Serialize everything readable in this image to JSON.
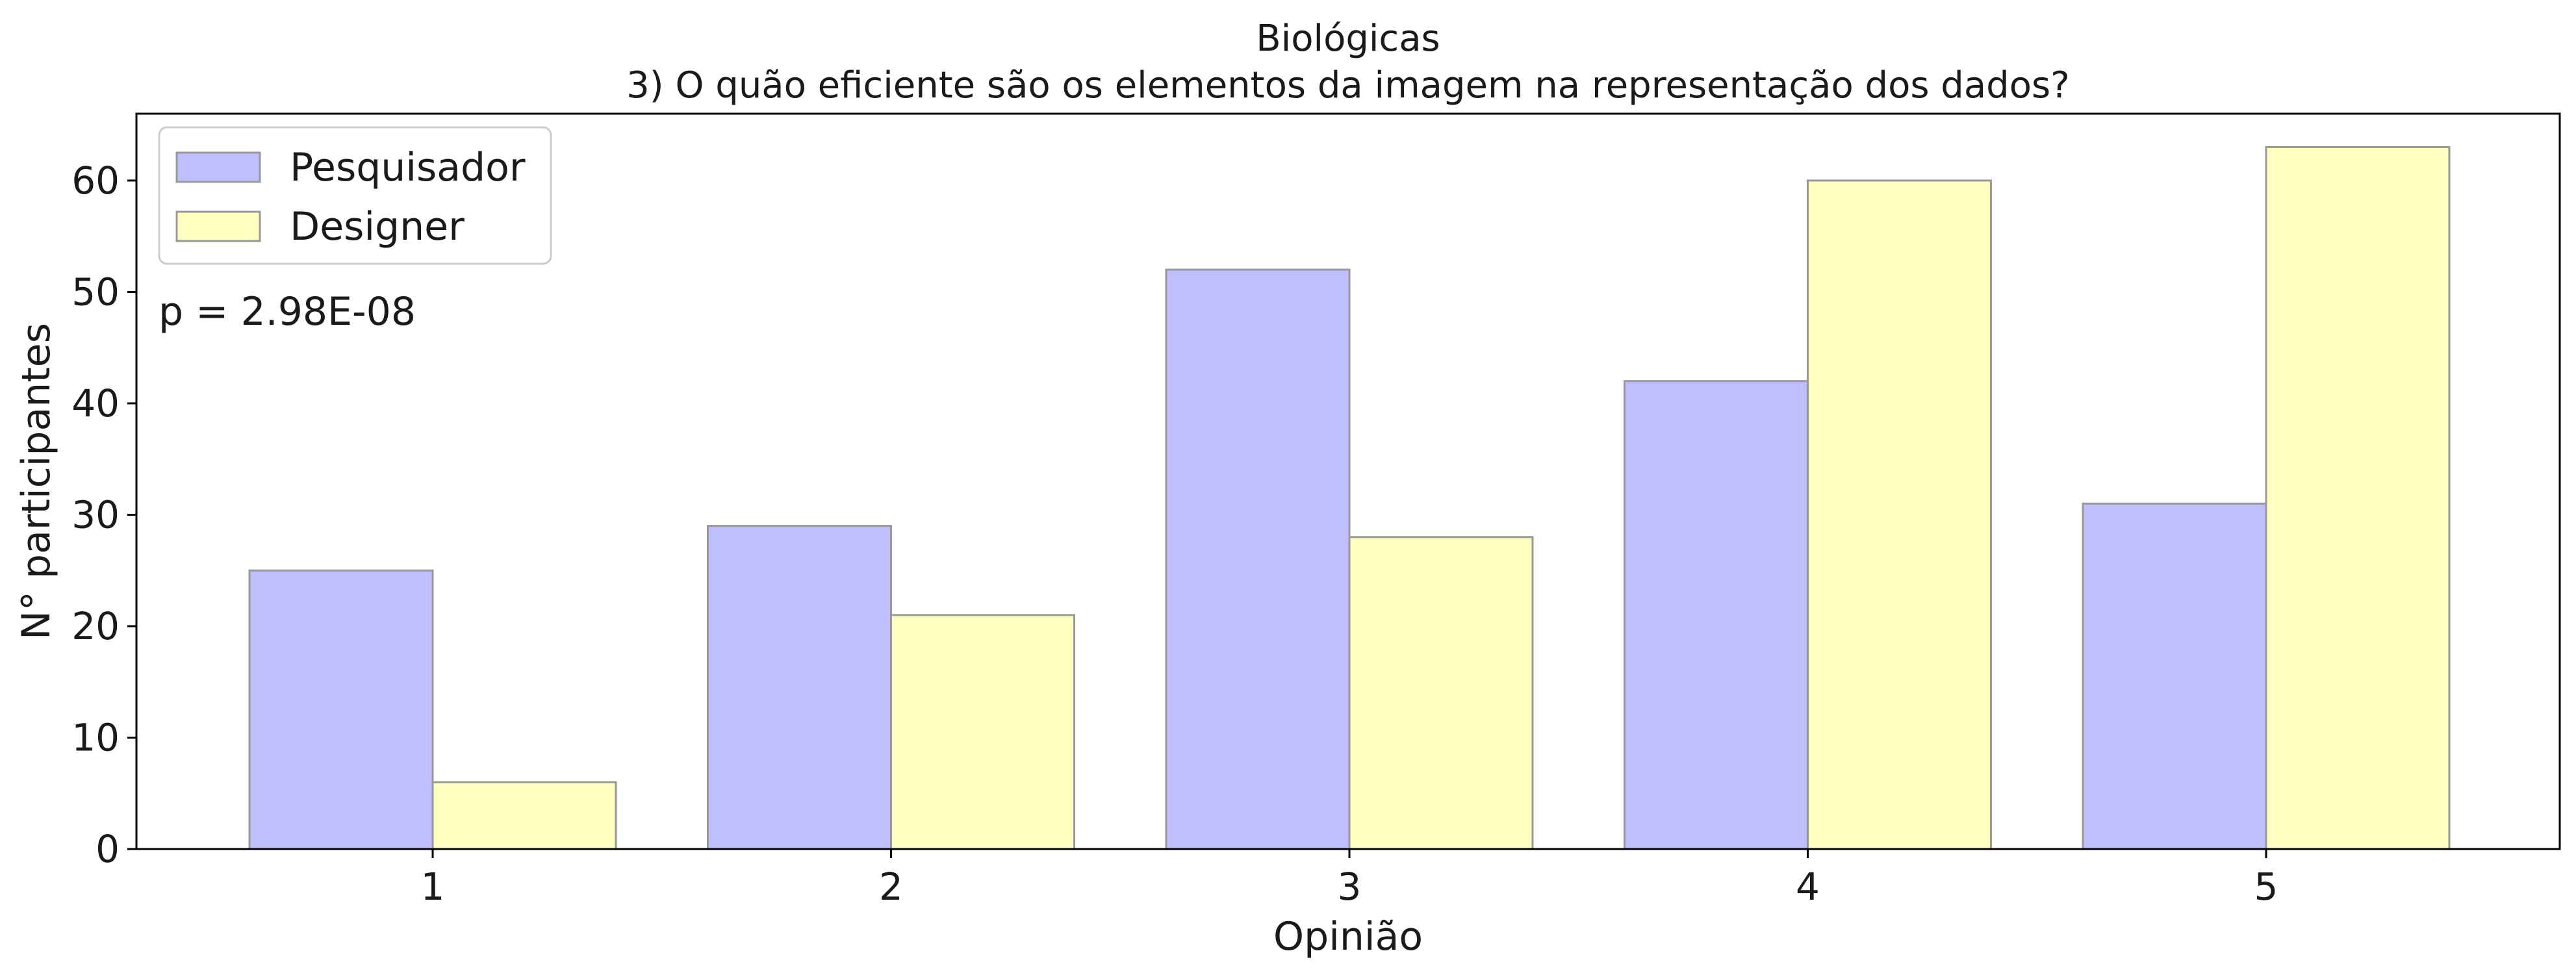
{
  "chart_data": {
    "type": "bar",
    "title": "Biológicas",
    "subtitle": "3) O quão eficiente são os elementos da imagem na representação dos dados?",
    "xlabel": "Opinião",
    "ylabel": "N° participantes",
    "categories": [
      "1",
      "2",
      "3",
      "4",
      "5"
    ],
    "series": [
      {
        "name": "Pesquisador",
        "values": [
          25,
          29,
          52,
          42,
          31
        ],
        "color": "#bfbfff"
      },
      {
        "name": "Designer",
        "values": [
          6,
          21,
          28,
          60,
          63
        ],
        "color": "#ffffbf"
      }
    ],
    "ylim": [
      0,
      66
    ],
    "yticks": [
      0,
      10,
      20,
      30,
      40,
      50,
      60
    ],
    "bar_edge_color": "#999999",
    "grid": false,
    "legend_position": "top-left",
    "annotation": "p = 2.98E-08"
  }
}
